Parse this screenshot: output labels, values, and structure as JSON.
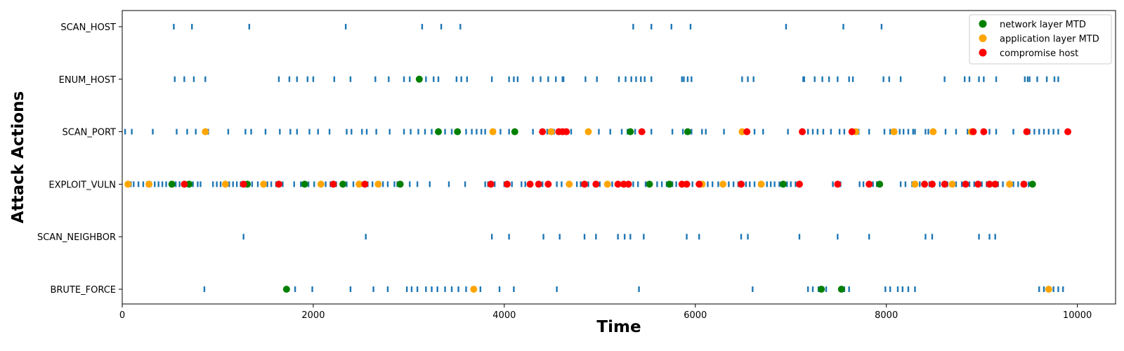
{
  "chart_data": {
    "type": "scatter",
    "title": "",
    "xlabel": "Time",
    "ylabel": "Attack Actions",
    "xlim": [
      0,
      10400
    ],
    "x_ticks": [
      0,
      2000,
      4000,
      6000,
      8000,
      10000
    ],
    "categories": [
      "SCAN_HOST",
      "ENUM_HOST",
      "SCAN_PORT",
      "EXPLOIT_VULN",
      "SCAN_NEIGHBOR",
      "BRUTE_FORCE"
    ],
    "grid": false,
    "legend_position": "top-right",
    "attack_events": {
      "color": "#1f77b4",
      "SCAN_HOST": [
        540,
        730,
        1330,
        2340,
        3140,
        3340,
        3540,
        5350,
        5540,
        5750,
        5950,
        6950,
        7550,
        7950
      ],
      "ENUM_HOST": [
        550,
        650,
        750,
        870,
        1640,
        1750,
        1830,
        1940,
        2000,
        2220,
        2390,
        2650,
        2790,
        2950,
        3010,
        3110,
        3180,
        3260,
        3310,
        3500,
        3550,
        3610,
        3870,
        4050,
        4100,
        4140,
        4300,
        4380,
        4460,
        4540,
        4610,
        4620,
        4850,
        4970,
        5200,
        5270,
        5330,
        5380,
        5430,
        5470,
        5540,
        5860,
        5880,
        5920,
        5960,
        6490,
        6550,
        6610,
        7130,
        7140,
        7250,
        7330,
        7400,
        7490,
        7610,
        7650,
        7970,
        8030,
        8150,
        8610,
        8820,
        8870,
        8970,
        9020,
        9150,
        9450,
        9480,
        9500,
        9580,
        9680,
        9760,
        9800
      ],
      "SCAN_PORT": [
        30,
        100,
        320,
        570,
        680,
        770,
        900,
        1110,
        1290,
        1350,
        1500,
        1650,
        1760,
        1830,
        1960,
        2050,
        2170,
        2350,
        2400,
        2510,
        2560,
        2660,
        2800,
        2950,
        3020,
        3100,
        3170,
        3240,
        3300,
        3380,
        3450,
        3600,
        3660,
        3710,
        3760,
        3800,
        3900,
        3960,
        4050,
        4120,
        4300,
        4450,
        4520,
        4600,
        4700,
        4890,
        4990,
        5110,
        5230,
        5290,
        5370,
        5540,
        5760,
        5870,
        5960,
        6070,
        6110,
        6300,
        6550,
        6620,
        6710,
        6970,
        7110,
        7180,
        7230,
        7280,
        7340,
        7420,
        7510,
        7560,
        7660,
        7710,
        7820,
        7980,
        8040,
        8100,
        8140,
        8180,
        8230,
        8280,
        8300,
        8410,
        8440,
        8480,
        8620,
        8730,
        8850,
        8880,
        9020,
        9080,
        9150,
        9330,
        9500,
        9550,
        9600,
        9650,
        9700,
        9750,
        9800
      ],
      "EXPLOIT_VULN": [
        90,
        120,
        170,
        220,
        260,
        300,
        340,
        380,
        420,
        460,
        500,
        560,
        600,
        640,
        680,
        740,
        790,
        820,
        950,
        990,
        1030,
        1070,
        1120,
        1160,
        1200,
        1240,
        1300,
        1360,
        1420,
        1480,
        1520,
        1560,
        1610,
        1680,
        1800,
        1870,
        1950,
        2010,
        2070,
        2130,
        2180,
        2240,
        2300,
        2350,
        2420,
        2470,
        2520,
        2570,
        2620,
        2700,
        2730,
        2780,
        2850,
        2880,
        3010,
        3090,
        3220,
        3420,
        3590,
        3800,
        3830,
        3900,
        4000,
        4080,
        4180,
        4220,
        4260,
        4340,
        4400,
        4550,
        4600,
        4690,
        4760,
        4800,
        4880,
        4940,
        5000,
        5070,
        5130,
        5190,
        5240,
        5350,
        5400,
        5480,
        5530,
        5600,
        5650,
        5700,
        5760,
        5800,
        5900,
        5970,
        6040,
        6090,
        6130,
        6180,
        6240,
        6300,
        6350,
        6400,
        6450,
        6530,
        6570,
        6620,
        6670,
        6750,
        6790,
        6830,
        6880,
        6920,
        6960,
        7000,
        7050,
        7090,
        7440,
        7480,
        7520,
        7720,
        7760,
        7810,
        7860,
        7900,
        7940,
        8150,
        8200,
        8270,
        8350,
        8400,
        8450,
        8500,
        8560,
        8600,
        8640,
        8680,
        8730,
        8790,
        8830,
        8870,
        8920,
        9000,
        9050,
        9120,
        9170,
        9220,
        9280,
        9330,
        9380,
        9420,
        9460,
        9490
      ],
      "SCAN_NEIGHBOR": [
        1270,
        2550,
        3870,
        4050,
        4410,
        4580,
        4840,
        4960,
        5190,
        5260,
        5320,
        5460,
        5910,
        6040,
        6480,
        6550,
        7090,
        7490,
        7820,
        8410,
        8480,
        8970,
        9080,
        9140
      ],
      "BRUTE_FORCE": [
        860,
        1810,
        1990,
        2390,
        2630,
        2780,
        2980,
        3030,
        3090,
        3180,
        3240,
        3300,
        3380,
        3450,
        3520,
        3600,
        3750,
        3950,
        4100,
        4550,
        5410,
        6600,
        7180,
        7230,
        7290,
        7370,
        7560,
        7610,
        7990,
        8040,
        8120,
        8170,
        8230,
        8300,
        9600,
        9650,
        9750,
        9800,
        9850
      ]
    },
    "series": [
      {
        "name": "network layer MTD",
        "color": "#008000",
        "points": [
          {
            "x": 3110,
            "y": "ENUM_HOST"
          },
          {
            "x": 3310,
            "y": "SCAN_PORT"
          },
          {
            "x": 3510,
            "y": "SCAN_PORT"
          },
          {
            "x": 4110,
            "y": "SCAN_PORT"
          },
          {
            "x": 5320,
            "y": "SCAN_PORT"
          },
          {
            "x": 5920,
            "y": "SCAN_PORT"
          },
          {
            "x": 520,
            "y": "EXPLOIT_VULN"
          },
          {
            "x": 700,
            "y": "EXPLOIT_VULN"
          },
          {
            "x": 1310,
            "y": "EXPLOIT_VULN"
          },
          {
            "x": 1910,
            "y": "EXPLOIT_VULN"
          },
          {
            "x": 2310,
            "y": "EXPLOIT_VULN"
          },
          {
            "x": 2910,
            "y": "EXPLOIT_VULN"
          },
          {
            "x": 5520,
            "y": "EXPLOIT_VULN"
          },
          {
            "x": 5730,
            "y": "EXPLOIT_VULN"
          },
          {
            "x": 6920,
            "y": "EXPLOIT_VULN"
          },
          {
            "x": 7930,
            "y": "EXPLOIT_VULN"
          },
          {
            "x": 9530,
            "y": "EXPLOIT_VULN"
          },
          {
            "x": 1720,
            "y": "BRUTE_FORCE"
          },
          {
            "x": 7320,
            "y": "BRUTE_FORCE"
          },
          {
            "x": 7530,
            "y": "BRUTE_FORCE"
          }
        ]
      },
      {
        "name": "application layer MTD",
        "color": "#ffa500",
        "points": [
          {
            "x": 870,
            "y": "SCAN_PORT"
          },
          {
            "x": 3880,
            "y": "SCAN_PORT"
          },
          {
            "x": 4490,
            "y": "SCAN_PORT"
          },
          {
            "x": 4880,
            "y": "SCAN_PORT"
          },
          {
            "x": 6490,
            "y": "SCAN_PORT"
          },
          {
            "x": 7680,
            "y": "SCAN_PORT"
          },
          {
            "x": 8080,
            "y": "SCAN_PORT"
          },
          {
            "x": 8490,
            "y": "SCAN_PORT"
          },
          {
            "x": 8890,
            "y": "SCAN_PORT"
          },
          {
            "x": 60,
            "y": "EXPLOIT_VULN"
          },
          {
            "x": 280,
            "y": "EXPLOIT_VULN"
          },
          {
            "x": 1080,
            "y": "EXPLOIT_VULN"
          },
          {
            "x": 1480,
            "y": "EXPLOIT_VULN"
          },
          {
            "x": 2080,
            "y": "EXPLOIT_VULN"
          },
          {
            "x": 2480,
            "y": "EXPLOIT_VULN"
          },
          {
            "x": 2680,
            "y": "EXPLOIT_VULN"
          },
          {
            "x": 4680,
            "y": "EXPLOIT_VULN"
          },
          {
            "x": 5080,
            "y": "EXPLOIT_VULN"
          },
          {
            "x": 6070,
            "y": "EXPLOIT_VULN"
          },
          {
            "x": 6290,
            "y": "EXPLOIT_VULN"
          },
          {
            "x": 6690,
            "y": "EXPLOIT_VULN"
          },
          {
            "x": 8300,
            "y": "EXPLOIT_VULN"
          },
          {
            "x": 8690,
            "y": "EXPLOIT_VULN"
          },
          {
            "x": 9290,
            "y": "EXPLOIT_VULN"
          },
          {
            "x": 3680,
            "y": "BRUTE_FORCE"
          },
          {
            "x": 9700,
            "y": "BRUTE_FORCE"
          }
        ]
      },
      {
        "name": "compromise host",
        "color": "#ff0000",
        "points": [
          {
            "x": 4400,
            "y": "SCAN_PORT"
          },
          {
            "x": 4570,
            "y": "SCAN_PORT"
          },
          {
            "x": 4610,
            "y": "SCAN_PORT"
          },
          {
            "x": 4650,
            "y": "SCAN_PORT"
          },
          {
            "x": 5440,
            "y": "SCAN_PORT"
          },
          {
            "x": 6540,
            "y": "SCAN_PORT"
          },
          {
            "x": 7120,
            "y": "SCAN_PORT"
          },
          {
            "x": 7640,
            "y": "SCAN_PORT"
          },
          {
            "x": 8910,
            "y": "SCAN_PORT"
          },
          {
            "x": 9020,
            "y": "SCAN_PORT"
          },
          {
            "x": 9470,
            "y": "SCAN_PORT"
          },
          {
            "x": 9900,
            "y": "SCAN_PORT"
          },
          {
            "x": 650,
            "y": "EXPLOIT_VULN"
          },
          {
            "x": 1270,
            "y": "EXPLOIT_VULN"
          },
          {
            "x": 1640,
            "y": "EXPLOIT_VULN"
          },
          {
            "x": 2210,
            "y": "EXPLOIT_VULN"
          },
          {
            "x": 2540,
            "y": "EXPLOIT_VULN"
          },
          {
            "x": 3860,
            "y": "EXPLOIT_VULN"
          },
          {
            "x": 4030,
            "y": "EXPLOIT_VULN"
          },
          {
            "x": 4270,
            "y": "EXPLOIT_VULN"
          },
          {
            "x": 4360,
            "y": "EXPLOIT_VULN"
          },
          {
            "x": 4460,
            "y": "EXPLOIT_VULN"
          },
          {
            "x": 4840,
            "y": "EXPLOIT_VULN"
          },
          {
            "x": 4960,
            "y": "EXPLOIT_VULN"
          },
          {
            "x": 5190,
            "y": "EXPLOIT_VULN"
          },
          {
            "x": 5250,
            "y": "EXPLOIT_VULN"
          },
          {
            "x": 5300,
            "y": "EXPLOIT_VULN"
          },
          {
            "x": 5860,
            "y": "EXPLOIT_VULN"
          },
          {
            "x": 5910,
            "y": "EXPLOIT_VULN"
          },
          {
            "x": 6040,
            "y": "EXPLOIT_VULN"
          },
          {
            "x": 6480,
            "y": "EXPLOIT_VULN"
          },
          {
            "x": 7090,
            "y": "EXPLOIT_VULN"
          },
          {
            "x": 7490,
            "y": "EXPLOIT_VULN"
          },
          {
            "x": 7820,
            "y": "EXPLOIT_VULN"
          },
          {
            "x": 8400,
            "y": "EXPLOIT_VULN"
          },
          {
            "x": 8480,
            "y": "EXPLOIT_VULN"
          },
          {
            "x": 8610,
            "y": "EXPLOIT_VULN"
          },
          {
            "x": 8830,
            "y": "EXPLOIT_VULN"
          },
          {
            "x": 8960,
            "y": "EXPLOIT_VULN"
          },
          {
            "x": 9080,
            "y": "EXPLOIT_VULN"
          },
          {
            "x": 9140,
            "y": "EXPLOIT_VULN"
          },
          {
            "x": 9440,
            "y": "EXPLOIT_VULN"
          }
        ]
      }
    ]
  }
}
